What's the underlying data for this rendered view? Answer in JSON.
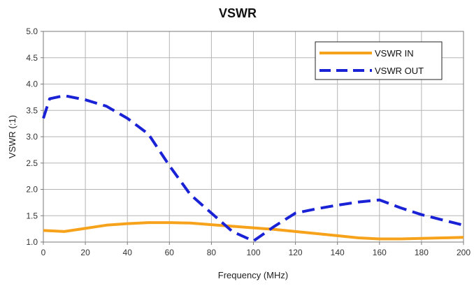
{
  "chart_data": {
    "type": "line",
    "title": "VSWR",
    "xlabel": "Frequency (MHz)",
    "ylabel": "VSWR (:1)",
    "xlim": [
      0,
      200
    ],
    "ylim": [
      1.0,
      5.0
    ],
    "x_ticks": [
      0,
      20,
      40,
      60,
      80,
      100,
      120,
      140,
      160,
      180,
      200
    ],
    "y_ticks": [
      "1.0",
      "1.5",
      "2.0",
      "2.5",
      "3.0",
      "3.5",
      "4.0",
      "4.5",
      "5.0"
    ],
    "grid": true,
    "legend_position": "top-right",
    "series": [
      {
        "name": "VSWR IN",
        "color": "#f7a21b",
        "style": "solid",
        "x": [
          0,
          10,
          20,
          30,
          40,
          50,
          60,
          70,
          80,
          90,
          100,
          110,
          120,
          130,
          140,
          150,
          160,
          170,
          180,
          190,
          200
        ],
        "y": [
          1.22,
          1.2,
          1.26,
          1.32,
          1.35,
          1.37,
          1.37,
          1.36,
          1.33,
          1.3,
          1.27,
          1.24,
          1.2,
          1.16,
          1.12,
          1.08,
          1.06,
          1.06,
          1.07,
          1.08,
          1.09
        ]
      },
      {
        "name": "VSWR OUT",
        "color": "#1a22d6",
        "style": "dashed",
        "x": [
          0,
          3,
          10,
          20,
          30,
          40,
          50,
          60,
          70,
          80,
          90,
          100,
          110,
          120,
          130,
          140,
          150,
          160,
          170,
          180,
          190,
          200
        ],
        "y": [
          3.35,
          3.72,
          3.78,
          3.7,
          3.58,
          3.35,
          3.05,
          2.45,
          1.9,
          1.55,
          1.2,
          1.02,
          1.3,
          1.55,
          1.63,
          1.7,
          1.76,
          1.8,
          1.65,
          1.52,
          1.42,
          1.32
        ]
      }
    ]
  }
}
